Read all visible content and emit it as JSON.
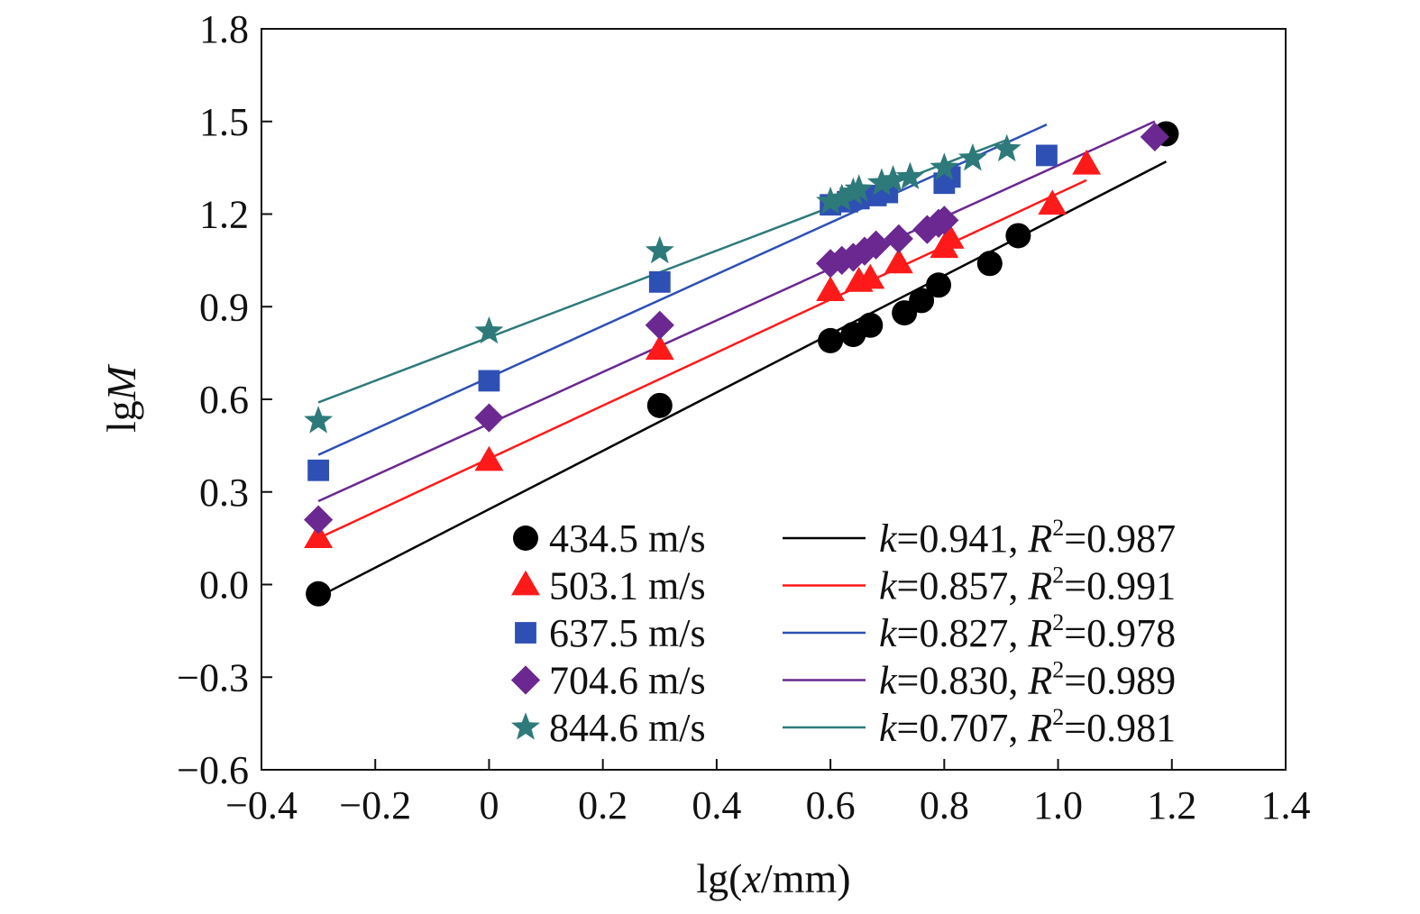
{
  "chart_data": {
    "type": "scatter",
    "title": "",
    "xlabel": {
      "prefix": "lg(",
      "var": "x",
      "suffix": "/mm)"
    },
    "ylabel": {
      "prefix": "lg",
      "var": "M"
    },
    "xlim": [
      -0.4,
      1.4
    ],
    "ylim": [
      -0.6,
      1.8
    ],
    "xticks": [
      -0.4,
      -0.2,
      0,
      0.2,
      0.4,
      0.6,
      0.8,
      1.0,
      1.2,
      1.4
    ],
    "xtick_labels": [
      "−0.4",
      "−0.2",
      "0",
      "0.2",
      "0.4",
      "0.6",
      "0.8",
      "1.0",
      "1.2",
      "1.4"
    ],
    "yticks": [
      -0.6,
      -0.3,
      0.0,
      0.3,
      0.6,
      0.9,
      1.2,
      1.5,
      1.8
    ],
    "ytick_labels": [
      "−0.6",
      "−0.3",
      "0.0",
      "0.3",
      "0.6",
      "0.9",
      "1.2",
      "1.5",
      "1.8"
    ],
    "grid": false,
    "legend_position": "bottom-right",
    "series": [
      {
        "name": "434.5 m/s",
        "marker": "circle",
        "color": "#000000",
        "k_label": "k",
        "k_value": "=0.941, ",
        "r_label": "R",
        "r_sup": "2",
        "r_value": "=0.987",
        "x": [
          -0.3,
          0.3,
          0.6,
          0.64,
          0.67,
          0.73,
          0.76,
          0.79,
          0.88,
          0.93,
          1.19
        ],
        "y": [
          -0.03,
          0.58,
          0.79,
          0.81,
          0.84,
          0.88,
          0.92,
          0.97,
          1.04,
          1.13,
          1.46
        ],
        "fit": {
          "x": [
            -0.3,
            1.19
          ],
          "y": [
            -0.04,
            1.37
          ]
        }
      },
      {
        "name": "503.1 m/s",
        "marker": "triangle",
        "color": "#ff1a1a",
        "k_label": "k",
        "k_value": "=0.857, ",
        "r_label": "R",
        "r_sup": "2",
        "r_value": "=0.991",
        "x": [
          -0.3,
          0.0,
          0.3,
          0.6,
          0.65,
          0.67,
          0.72,
          0.8,
          0.81,
          0.99,
          1.05
        ],
        "y": [
          0.15,
          0.4,
          0.76,
          0.95,
          0.98,
          0.99,
          1.04,
          1.09,
          1.12,
          1.23,
          1.36
        ],
        "fit": {
          "x": [
            -0.3,
            1.05
          ],
          "y": [
            0.15,
            1.31
          ]
        }
      },
      {
        "name": "637.5 m/s",
        "marker": "square",
        "color": "#2e50b4",
        "k_label": "k",
        "k_value": "=0.827, ",
        "r_label": "R",
        "r_sup": "2",
        "r_value": "=0.978",
        "x": [
          -0.3,
          0.0,
          0.3,
          0.6,
          0.63,
          0.65,
          0.68,
          0.7,
          0.8,
          0.81,
          0.98
        ],
        "y": [
          0.37,
          0.66,
          0.98,
          1.23,
          1.24,
          1.25,
          1.26,
          1.27,
          1.3,
          1.32,
          1.39
        ],
        "fit": {
          "x": [
            -0.3,
            0.98
          ],
          "y": [
            0.42,
            1.49
          ]
        }
      },
      {
        "name": "704.6 m/s",
        "marker": "diamond",
        "color": "#6a2890",
        "k_label": "k",
        "k_value": "=0.830, ",
        "r_label": "R",
        "r_sup": "2",
        "r_value": "=0.989",
        "x": [
          -0.3,
          0.0,
          0.3,
          0.6,
          0.62,
          0.64,
          0.66,
          0.68,
          0.72,
          0.77,
          0.79,
          0.8,
          1.17
        ],
        "y": [
          0.21,
          0.54,
          0.84,
          1.04,
          1.05,
          1.06,
          1.08,
          1.1,
          1.12,
          1.15,
          1.17,
          1.18,
          1.45
        ],
        "fit": {
          "x": [
            -0.3,
            1.17
          ],
          "y": [
            0.27,
            1.5
          ]
        }
      },
      {
        "name": "844.6 m/s",
        "marker": "star",
        "color": "#2e7a7a",
        "k_label": "k",
        "k_value": "=0.707, ",
        "r_label": "R",
        "r_sup": "2",
        "r_value": "=0.981",
        "x": [
          -0.3,
          0.0,
          0.3,
          0.6,
          0.62,
          0.64,
          0.65,
          0.69,
          0.71,
          0.74,
          0.8,
          0.85,
          0.91
        ],
        "y": [
          0.53,
          0.82,
          1.08,
          1.24,
          1.25,
          1.27,
          1.28,
          1.3,
          1.31,
          1.32,
          1.35,
          1.38,
          1.41
        ],
        "fit": {
          "x": [
            -0.3,
            0.91
          ],
          "y": [
            0.59,
            1.44
          ]
        }
      }
    ]
  }
}
